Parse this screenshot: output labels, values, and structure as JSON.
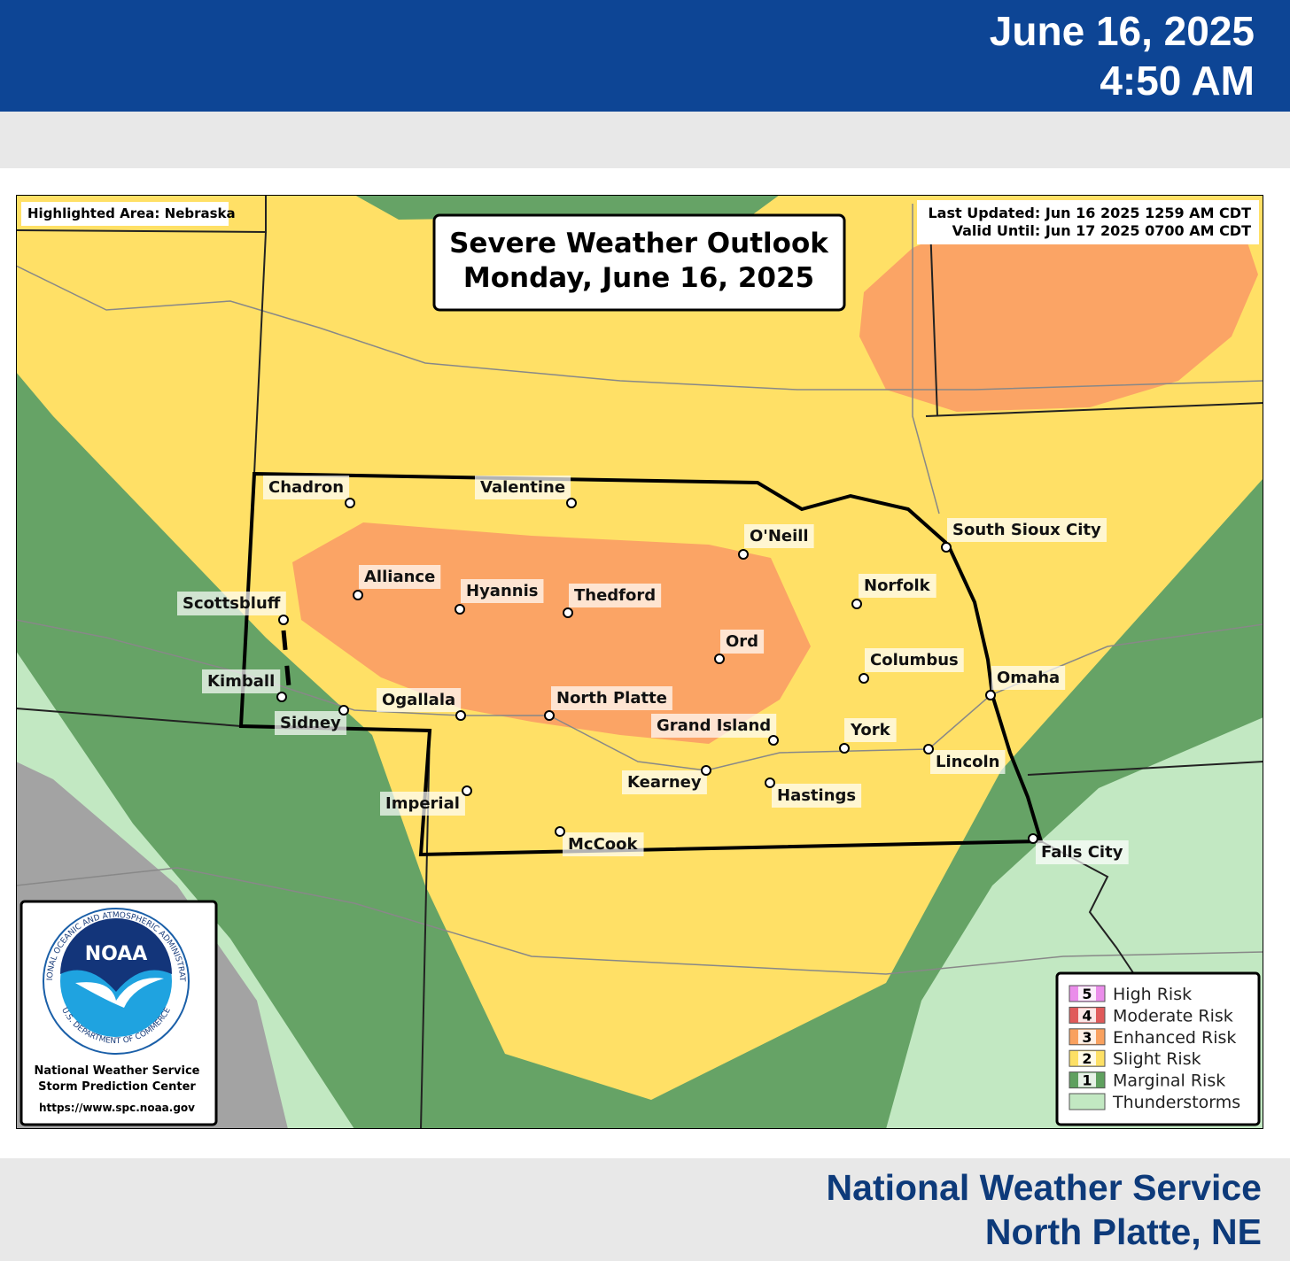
{
  "header": {
    "date": "June 16, 2025",
    "time": "4:50 AM"
  },
  "map": {
    "highlighted_area": "Highlighted Area: Nebraska",
    "title": "Severe Weather Outlook",
    "subtitle": "Monday, June 16, 2025",
    "last_updated": "Last Updated: Jun 16 2025 1259 AM CDT",
    "valid_until": "Valid Until: Jun 17 2025 0700 AM CDT",
    "cities": [
      "Chadron",
      "Valentine",
      "O'Neill",
      "South Sioux City",
      "Alliance",
      "Hyannis",
      "Thedford",
      "Norfolk",
      "Scottsbluff",
      "Ord",
      "Columbus",
      "Omaha",
      "Kimball",
      "Sidney",
      "Ogallala",
      "North Platte",
      "Grand Island",
      "York",
      "Lincoln",
      "Kearney",
      "Hastings",
      "Imperial",
      "McCook",
      "Falls City"
    ],
    "legend": [
      {
        "number": "5",
        "label": "High Risk",
        "color": "#ea8dea"
      },
      {
        "number": "4",
        "label": "Moderate Risk",
        "color": "#e05a5a"
      },
      {
        "number": "3",
        "label": "Enhanced Risk",
        "color": "#f9a15f"
      },
      {
        "number": "2",
        "label": "Slight Risk",
        "color": "#fde065"
      },
      {
        "number": "1",
        "label": "Marginal Risk",
        "color": "#5fa05f"
      },
      {
        "label": "Thunderstorms",
        "color": "#c2e8c2"
      }
    ],
    "logo": {
      "mark": "NOAA",
      "ring_top": "NATIONAL OCEANIC AND ATMOSPHERIC ADMINISTRATION",
      "ring_bottom": "U.S. DEPARTMENT OF COMMERCE",
      "line1": "National Weather Service",
      "line2": "Storm Prediction Center",
      "url": "https://www.spc.noaa.gov"
    }
  },
  "footer": {
    "office": "National Weather Service",
    "location": "North Platte, NE"
  }
}
